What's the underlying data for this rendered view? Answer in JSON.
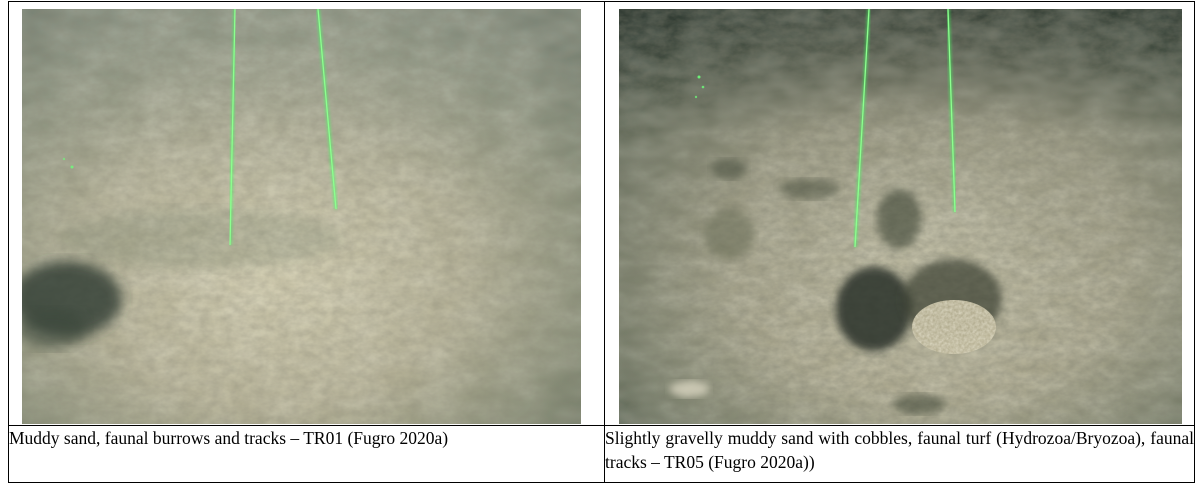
{
  "plates": [
    {
      "photo_alt": "Seabed photograph: muddy sand with faunal burrows and tracks, two green parallel laser lines",
      "caption": "Muddy sand, faunal burrows and tracks – TR01 (Fugro 2020a)"
    },
    {
      "photo_alt": "Seabed photograph: slightly gravelly muddy sand with cobbles and faunal turf, two green parallel laser lines",
      "caption": "Slightly gravelly muddy sand with cobbles, faunal turf (Hydrozoa/Bryozoa), faunal tracks – TR05 (Fugro 2020a))"
    }
  ],
  "colors": {
    "sediment_light": "#c8c4a6",
    "sediment_mid": "#9a9878",
    "vignette": "#1e2a22",
    "laser": "#3cff5a"
  }
}
